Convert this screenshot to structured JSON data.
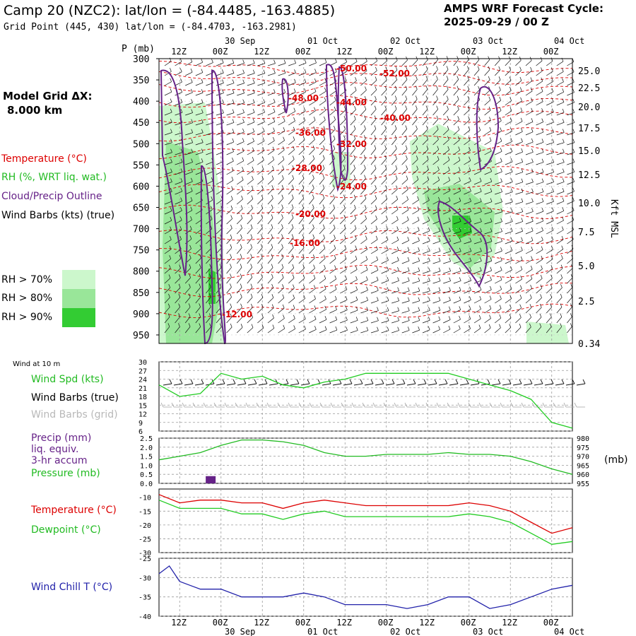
{
  "header": {
    "title": "Camp 20 (NZC2):  lat/lon = (-84.4485, -163.4885)",
    "subtitle": "Grid Point (445, 430) lat/lon = (-84.4703, -163.2981)",
    "forecast_label": "AMPS WRF Forecast Cycle:",
    "forecast_cycle": "2025-09-29 / 00  Z"
  },
  "left_labels": {
    "model_grid": "Model Grid ΔX:",
    "model_grid_value": "8.000 km",
    "temperature": "Temperature (°C)",
    "rh": "RH (%, WRT liq. wat.)",
    "cloud": "Cloud/Precip Outline",
    "wind_barbs": "Wind Barbs (kts) (true)",
    "rh70": "RH > 70%",
    "rh80": "RH > 80%",
    "rh90": "RH > 90%",
    "p_unit": "P (mb)",
    "right_axis": "Kft MSL"
  },
  "panel_labels": {
    "wind_at_10m": "Wind at 10 m",
    "wind_spd": "Wind Spd (kts)",
    "wind_barbs_true": "Wind Barbs (true)",
    "wind_barbs_grid": "Wind Barbs (grid)",
    "precip": "Precip (mm)",
    "liq": "liq. equiv.",
    "accum": "3-hr accum",
    "pressure": "Pressure (mb)",
    "pressure_unit": "(mb)",
    "temperature": "Temperature (°C)",
    "dewpoint": "Dewpoint (°C)",
    "windchill": "Wind Chill T (°C)"
  },
  "colors": {
    "temperature": "#dd0000",
    "rh70": "#ccf7cc",
    "rh80": "#99e699",
    "rh90": "#33cc33",
    "cloud": "#662288",
    "wind_spd": "#22cc22",
    "barbs_grid": "#b0b0b0",
    "precip": "#662288",
    "pressure": "#22bb22",
    "windchill": "#2222aa",
    "grid": "#9a9a9a"
  },
  "chart_data": [
    {
      "type": "heatmap",
      "panel": "cross-section",
      "x_ticks": [
        "12Z",
        "00Z",
        "12Z",
        "00Z",
        "12Z",
        "00Z",
        "12Z",
        "00Z",
        "12Z",
        "00Z"
      ],
      "x_dates": [
        "30 Sep",
        "01 Oct",
        "02 Oct",
        "03 Oct",
        "04 Oct"
      ],
      "y_ticks_mb": [
        300,
        350,
        400,
        450,
        500,
        550,
        600,
        650,
        700,
        750,
        800,
        850,
        900,
        950
      ],
      "y_right_kft": [
        "25.0",
        "22.5",
        "20.0",
        "17.5",
        "15.0",
        "12.5",
        "10.0",
        "7.5",
        "5.0",
        "2.5",
        "0.34"
      ],
      "temperature_contour_labels": [
        "-52.00",
        "-50.00",
        "-48.00",
        "-44.00",
        "-40.00",
        "-36.00",
        "-32.00",
        "-28.00",
        "-24.00",
        "-20.00",
        "-16.00",
        "-12.00"
      ]
    },
    {
      "type": "line",
      "panel": "wind",
      "y_ticks": [
        6,
        9,
        12,
        15,
        18,
        21,
        24,
        27,
        30
      ],
      "ylim": [
        6,
        30
      ],
      "x_hours": [
        0,
        6,
        12,
        18,
        24,
        30,
        36,
        42,
        48,
        54,
        60,
        66,
        72,
        78,
        84,
        90,
        96,
        102,
        108,
        114,
        120
      ],
      "series": [
        {
          "name": "Wind Spd (kts)",
          "values": [
            22,
            18,
            19,
            26,
            24,
            25,
            22,
            21,
            23,
            24,
            26,
            26,
            26,
            26,
            26,
            24,
            22,
            20,
            17,
            9,
            7
          ]
        }
      ]
    },
    {
      "type": "bar+line",
      "panel": "precip-pressure",
      "y_left_ticks": [
        "0.0",
        "0.5",
        "1.0",
        "1.5",
        "2.0",
        "2.5"
      ],
      "y_right_ticks": [
        955,
        960,
        965,
        970,
        975,
        980
      ],
      "precip_bars": [
        {
          "hour": 15,
          "mm": 0.4
        }
      ],
      "series": [
        {
          "name": "Pressure (mb)",
          "axis": "right",
          "x_hours": [
            0,
            6,
            12,
            18,
            24,
            30,
            36,
            42,
            48,
            54,
            60,
            66,
            72,
            78,
            84,
            90,
            96,
            102,
            108,
            114,
            120
          ],
          "values": [
            968,
            970,
            972,
            976,
            979,
            979,
            978,
            976,
            972,
            970,
            970,
            971,
            971,
            971,
            972,
            971,
            971,
            970,
            967,
            963,
            960
          ]
        }
      ]
    },
    {
      "type": "line",
      "panel": "temperature-dewpoint",
      "y_ticks": [
        -30,
        -25,
        -20,
        -15,
        -10
      ],
      "ylim": [
        -30,
        -7
      ],
      "x_hours": [
        0,
        6,
        12,
        18,
        24,
        30,
        36,
        42,
        48,
        54,
        60,
        66,
        72,
        78,
        84,
        90,
        96,
        102,
        108,
        114,
        120
      ],
      "series": [
        {
          "name": "Temperature (°C)",
          "values": [
            -9,
            -12,
            -11,
            -11,
            -12,
            -12,
            -14,
            -12,
            -11,
            -12,
            -13,
            -13,
            -13,
            -13,
            -13,
            -12,
            -13,
            -15,
            -19,
            -23,
            -21
          ]
        },
        {
          "name": "Dewpoint (°C)",
          "values": [
            -11,
            -14,
            -14,
            -14,
            -16,
            -16,
            -18,
            -16,
            -15,
            -17,
            -17,
            -17,
            -17,
            -17,
            -17,
            -16,
            -17,
            -19,
            -23,
            -27,
            -26
          ]
        }
      ]
    },
    {
      "type": "line",
      "panel": "windchill",
      "y_ticks": [
        -40,
        -35,
        -30,
        -25
      ],
      "ylim": [
        -40,
        -25
      ],
      "x_hours": [
        0,
        3,
        6,
        9,
        12,
        15,
        18,
        24,
        30,
        36,
        42,
        48,
        54,
        60,
        66,
        72,
        78,
        84,
        90,
        96,
        102,
        108,
        114,
        120
      ],
      "series": [
        {
          "name": "Wind Chill T (°C)",
          "values": [
            -29,
            -27,
            -31,
            -32,
            -33,
            -33,
            -33,
            -35,
            -35,
            -35,
            -34,
            -35,
            -37,
            -37,
            -37,
            -38,
            -37,
            -35,
            -35,
            -38,
            -37,
            -35,
            -33,
            -32
          ]
        }
      ]
    }
  ]
}
